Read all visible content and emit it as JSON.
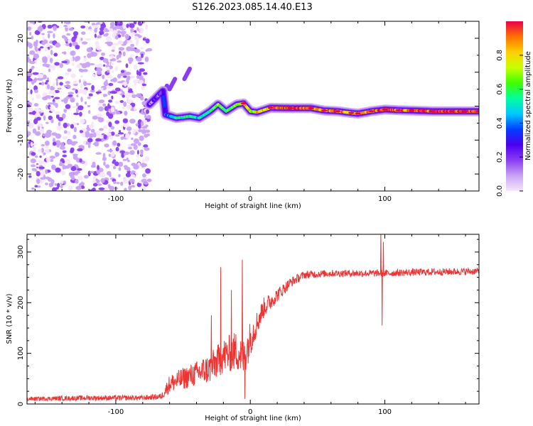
{
  "title": "S126.2023.085.14.40.E13",
  "colors": {
    "snr_line": "#ee3333",
    "axis": "#000000",
    "background": "#ffffff",
    "colormap": [
      "#f6e6fc",
      "#c9a2f5",
      "#8a3cf2",
      "#4a00f0",
      "#0040ff",
      "#00c8ff",
      "#00ffa0",
      "#3cff00",
      "#c8ff00",
      "#ffd000",
      "#ff7000",
      "#e8004a"
    ]
  },
  "chart_data": [
    {
      "type": "heatmap",
      "title": "S126.2023.085.14.40.E13",
      "xlabel": "Height of straight line (km)",
      "ylabel": "Frequency (Hz)",
      "xlim": [
        -166,
        170
      ],
      "ylim": [
        -25,
        25
      ],
      "xticks": [
        -100,
        0,
        100
      ],
      "xtick_labels": [
        "-100",
        "0",
        "100"
      ],
      "yticks": [
        -20,
        -10,
        0,
        10,
        20
      ],
      "ytick_labels": [
        "-20",
        "-10",
        "0",
        "10",
        "20"
      ],
      "noise_region_x": [
        -166,
        -75
      ],
      "ridge_description": "Doppler ridge along frequency near -1 Hz from -65 km to 170 km; scattered low-amplitude noise below -75 km",
      "ridge": [
        {
          "x": -75,
          "y": 0.5,
          "amp": 0.15
        },
        {
          "x": -70,
          "y": 2.5,
          "amp": 0.2
        },
        {
          "x": -65,
          "y": 4.5,
          "amp": 0.25
        },
        {
          "x": -63,
          "y": -2.5,
          "amp": 0.35
        },
        {
          "x": -55,
          "y": -3.5,
          "amp": 0.55
        },
        {
          "x": -45,
          "y": -3.0,
          "amp": 0.55
        },
        {
          "x": -38,
          "y": -3.5,
          "amp": 0.5
        },
        {
          "x": -30,
          "y": -1.5,
          "amp": 0.6
        },
        {
          "x": -24,
          "y": 0.5,
          "amp": 0.65
        },
        {
          "x": -18,
          "y": -1.5,
          "amp": 0.6
        },
        {
          "x": -10,
          "y": 0.5,
          "amp": 0.7
        },
        {
          "x": -5,
          "y": 0.8,
          "amp": 0.85
        },
        {
          "x": 0,
          "y": -1.5,
          "amp": 0.7
        },
        {
          "x": 5,
          "y": -1.8,
          "amp": 0.75
        },
        {
          "x": 15,
          "y": -0.5,
          "amp": 0.9
        },
        {
          "x": 30,
          "y": -0.6,
          "amp": 0.95
        },
        {
          "x": 45,
          "y": -0.6,
          "amp": 0.9
        },
        {
          "x": 55,
          "y": -1.3,
          "amp": 0.85
        },
        {
          "x": 65,
          "y": -1.5,
          "amp": 0.9
        },
        {
          "x": 75,
          "y": -2.0,
          "amp": 0.85
        },
        {
          "x": 80,
          "y": -2.2,
          "amp": 0.9
        },
        {
          "x": 90,
          "y": -1.5,
          "amp": 0.85
        },
        {
          "x": 100,
          "y": -1.0,
          "amp": 0.95
        },
        {
          "x": 110,
          "y": -1.2,
          "amp": 0.85
        },
        {
          "x": 120,
          "y": -1.3,
          "amp": 0.95
        },
        {
          "x": 135,
          "y": -1.5,
          "amp": 0.95
        },
        {
          "x": 150,
          "y": -1.5,
          "amp": 0.95
        },
        {
          "x": 160,
          "y": -1.5,
          "amp": 0.95
        },
        {
          "x": 170,
          "y": -1.5,
          "amp": 0.95
        }
      ],
      "ghost_streaks": [
        {
          "x": [
            -60,
            -56
          ],
          "y": [
            5,
            8
          ]
        },
        {
          "x": [
            -49,
            -45
          ],
          "y": [
            8,
            11
          ]
        },
        {
          "x": [
            -66,
            -62
          ],
          "y": [
            2,
            6
          ]
        }
      ]
    },
    {
      "type": "line",
      "xlabel": "Height of straight line (km)",
      "ylabel": "SNR (10 * v/v)",
      "xlim": [
        -166,
        170
      ],
      "ylim": [
        0,
        335
      ],
      "xticks": [
        -100,
        0,
        100
      ],
      "xtick_labels": [
        "-100",
        "0",
        "100"
      ],
      "yticks": [
        0,
        100,
        200,
        300
      ],
      "ytick_labels": [
        "0",
        "100",
        "200",
        "300"
      ],
      "series": [
        {
          "name": "SNR",
          "trend_x": [
            -166,
            -120,
            -80,
            -66,
            -60,
            -50,
            -40,
            -30,
            -20,
            -10,
            -5,
            0,
            5,
            10,
            20,
            30,
            40,
            60,
            80,
            100,
            120,
            170
          ],
          "trend_y": [
            10,
            12,
            12,
            15,
            40,
            50,
            60,
            70,
            95,
            105,
            90,
            130,
            160,
            190,
            215,
            240,
            255,
            258,
            258,
            258,
            260,
            262
          ],
          "noise_y": [
            4,
            5,
            5,
            6,
            18,
            22,
            25,
            30,
            35,
            40,
            40,
            35,
            25,
            20,
            14,
            10,
            8,
            7,
            7,
            7,
            7,
            7
          ],
          "spikes": [
            {
              "x": -29,
              "y": 175
            },
            {
              "x": -22,
              "y": 270
            },
            {
              "x": -14,
              "y": 225
            },
            {
              "x": -6,
              "y": 285
            },
            {
              "x": -4,
              "y": 10
            },
            {
              "x": 97,
              "y": 335
            },
            {
              "x": 98,
              "y": 155
            },
            {
              "x": 99,
              "y": 320
            }
          ]
        }
      ]
    }
  ],
  "colorbar": {
    "label": "Normalized spectral amplitude",
    "range": [
      0,
      1
    ],
    "ticks": [
      0.0,
      0.2,
      0.4,
      0.6,
      0.8
    ],
    "tick_labels": [
      "0.0",
      "0.2",
      "0.4",
      "0.6",
      "0.8"
    ]
  }
}
